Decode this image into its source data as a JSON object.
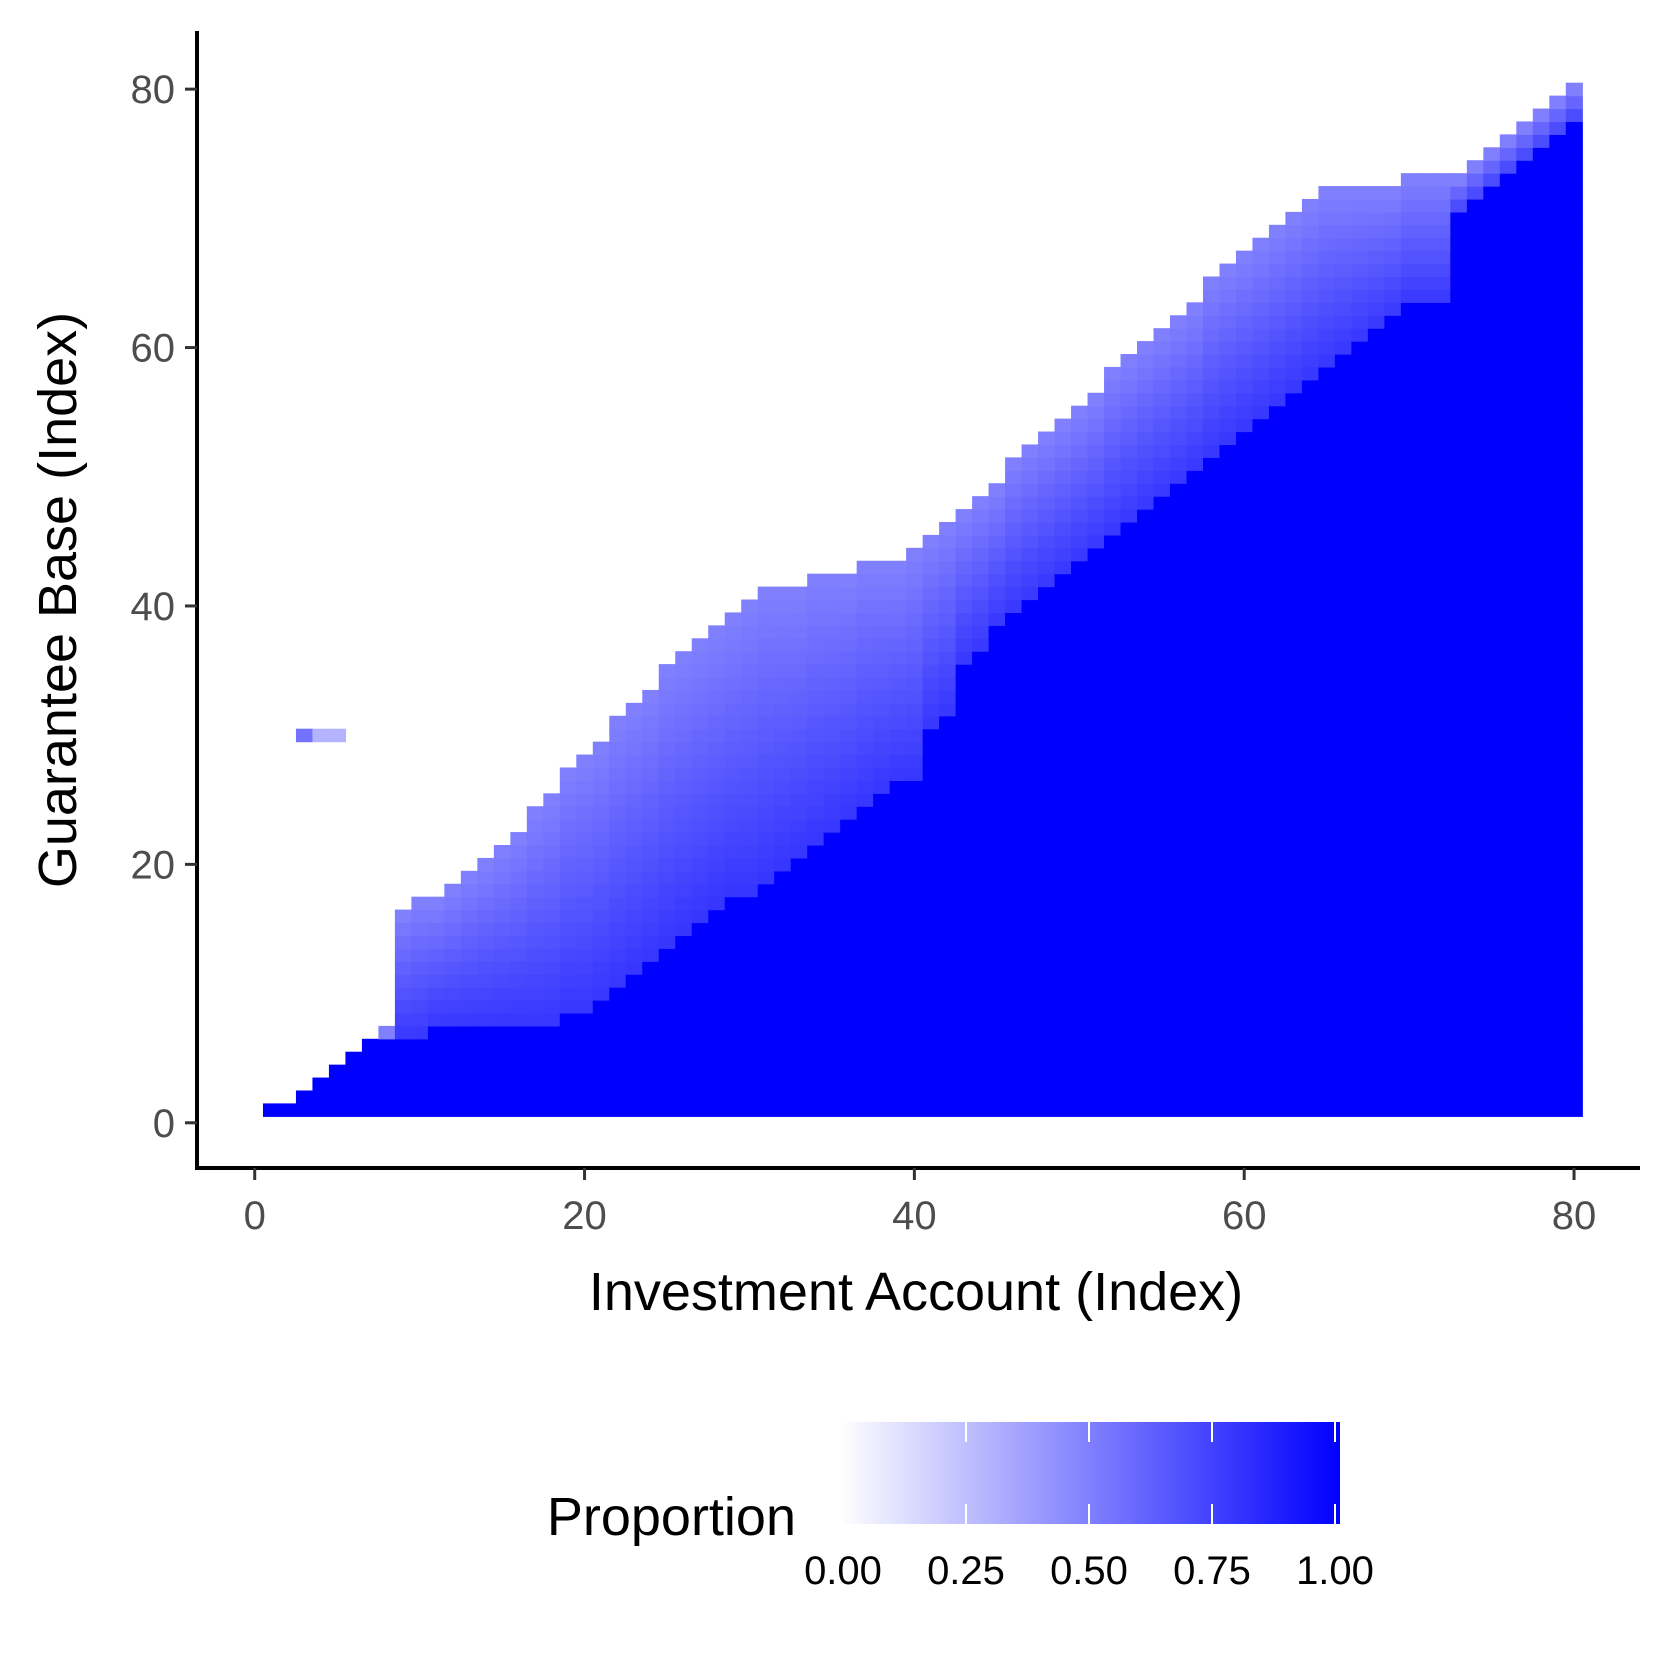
{
  "chart_data": {
    "type": "heatmap",
    "title": "",
    "xlabel": "Investment Account (Index)",
    "ylabel": "Guarantee Base (Index)",
    "xlim": [
      -3.5,
      84
    ],
    "ylim": [
      -3.5,
      84.5
    ],
    "x_ticks": [
      "0",
      "20",
      "40",
      "60",
      "80"
    ],
    "y_ticks": [
      "0",
      "20",
      "40",
      "60",
      "80"
    ],
    "x_tick_values": [
      0,
      20,
      40,
      60,
      80
    ],
    "y_tick_values": [
      0,
      20,
      40,
      60,
      80
    ],
    "grid": false,
    "colors": {
      "low": "#ffffff",
      "high": "#0000ff"
    },
    "legend": {
      "title": "Proportion",
      "position": "bottom",
      "breaks": [
        "0.00",
        "0.25",
        "0.50",
        "0.75",
        "1.00"
      ],
      "break_values": [
        0,
        0.25,
        0.5,
        0.75,
        1.0
      ],
      "range": [
        0,
        1
      ]
    },
    "x_range_cells": [
      1,
      80
    ],
    "lower_edge_cells": [
      1,
      1,
      2,
      3,
      4,
      5,
      6,
      6,
      6,
      6,
      7,
      7,
      7,
      7,
      7,
      7,
      7,
      7,
      8,
      8,
      9,
      10,
      11,
      12,
      13,
      14,
      15,
      16,
      17,
      17,
      18,
      19,
      20,
      21,
      22,
      23,
      24,
      25,
      26,
      26,
      30,
      31,
      35,
      36,
      38,
      39,
      40,
      41,
      42,
      43,
      44,
      45,
      46,
      47,
      48,
      49,
      50,
      51,
      52,
      53,
      54,
      55,
      56,
      57,
      58,
      59,
      60,
      61,
      62,
      63,
      63,
      63,
      70,
      71,
      72,
      73,
      74,
      75,
      76,
      77
    ],
    "upper_edge_cells": [
      1,
      1,
      2,
      3,
      4,
      5,
      6,
      7,
      16,
      17,
      17,
      18,
      19,
      20,
      21,
      22,
      24,
      25,
      27,
      28,
      29,
      31,
      32,
      33,
      35,
      36,
      37,
      38,
      39,
      40,
      41,
      41,
      41,
      42,
      42,
      42,
      43,
      43,
      43,
      44,
      45,
      46,
      47,
      48,
      49,
      51,
      52,
      53,
      54,
      55,
      56,
      58,
      59,
      60,
      61,
      62,
      63,
      65,
      66,
      67,
      68,
      69,
      70,
      71,
      72,
      72,
      72,
      72,
      72,
      73,
      73,
      73,
      73,
      74,
      75,
      76,
      77,
      78,
      79,
      80
    ],
    "upper_band_proportion": 0.5,
    "lower_band_proportion": 0.8,
    "below_boundary_proportion": 1.0,
    "isolated_cells": [
      {
        "x": 3,
        "y": 30,
        "value": 0.55
      },
      {
        "x": 4,
        "y": 30,
        "value": 0.3
      },
      {
        "x": 5,
        "y": 30,
        "value": 0.3
      }
    ]
  }
}
